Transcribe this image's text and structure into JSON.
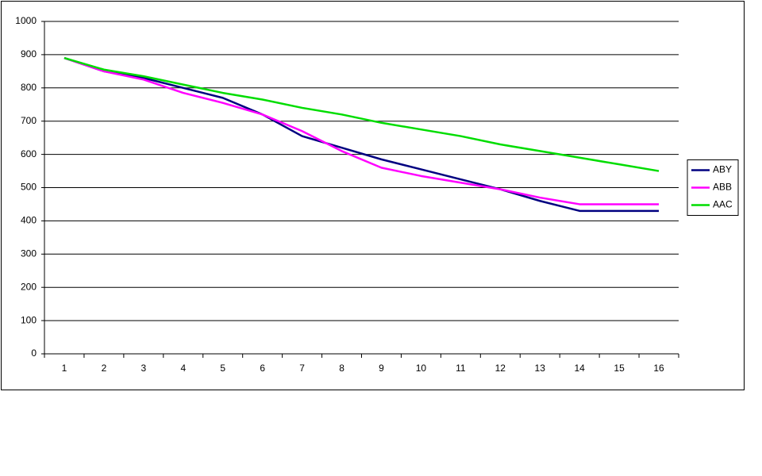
{
  "chart_data": {
    "type": "line",
    "categories": [
      "1",
      "2",
      "3",
      "4",
      "5",
      "6",
      "7",
      "8",
      "9",
      "10",
      "11",
      "12",
      "13",
      "14",
      "15",
      "16"
    ],
    "series": [
      {
        "name": "ABY",
        "color": "#000080",
        "values": [
          890,
          850,
          830,
          800,
          770,
          720,
          655,
          620,
          585,
          555,
          525,
          495,
          460,
          430,
          430,
          430
        ]
      },
      {
        "name": "ABB",
        "color": "#ff00ff",
        "values": [
          890,
          850,
          825,
          785,
          755,
          720,
          670,
          610,
          560,
          535,
          515,
          495,
          470,
          450,
          450,
          450
        ]
      },
      {
        "name": "AAC",
        "color": "#00dd00",
        "values": [
          890,
          855,
          835,
          810,
          785,
          765,
          740,
          720,
          695,
          675,
          655,
          630,
          610,
          590,
          570,
          550
        ]
      }
    ],
    "ylim": [
      0,
      1000
    ],
    "yticks": [
      0,
      100,
      200,
      300,
      400,
      500,
      600,
      700,
      800,
      900,
      1000
    ],
    "grid": true,
    "legend": "right"
  }
}
